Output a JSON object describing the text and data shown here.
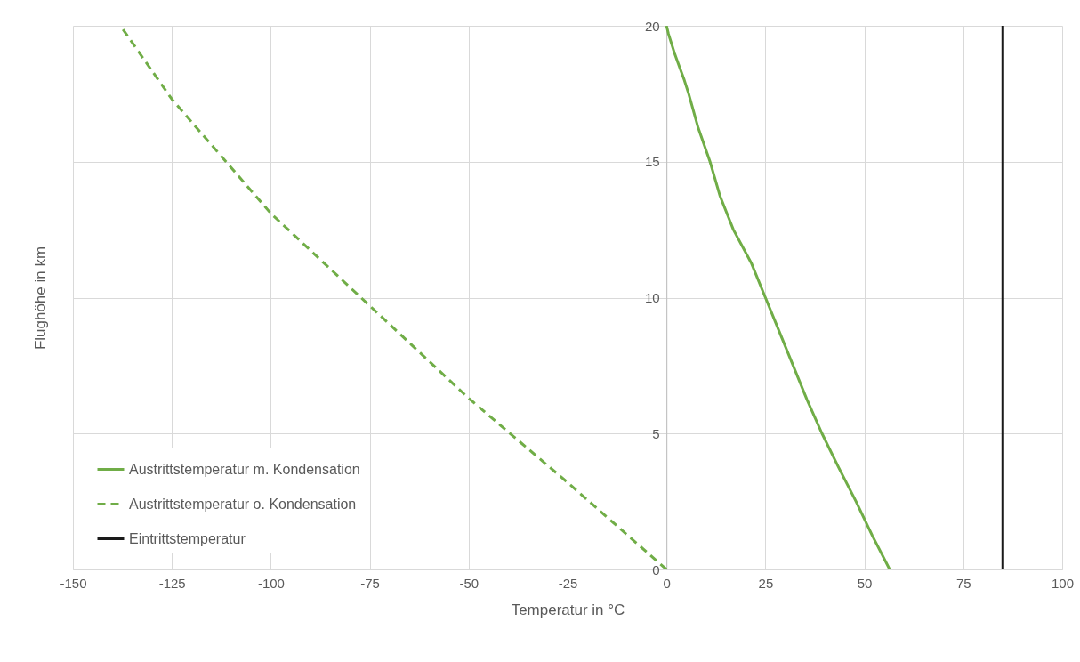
{
  "chart_data": {
    "type": "line",
    "xlabel": "Temperatur in °C",
    "ylabel": "Flughöhe in km",
    "xlim": [
      -150,
      100
    ],
    "xticks": [
      -150,
      -125,
      -100,
      -75,
      -50,
      -25,
      0,
      25,
      50,
      75,
      100
    ],
    "ylim": [
      0,
      20
    ],
    "yticks": [
      0,
      5,
      10,
      15,
      20
    ],
    "grid": true,
    "legend": "bottom left",
    "series": [
      {
        "name": "Austrittstemperatur m. Kondensation",
        "color": "#70ad47",
        "line_style": "solid",
        "x": [
          56.4,
          52,
          47.9,
          43.5,
          39.3,
          35.5,
          32,
          28.5,
          25,
          21.5,
          16.9,
          13.5,
          11,
          8,
          5.6,
          4.5,
          2,
          0.5,
          0
        ],
        "values": [
          0,
          1.25,
          2.5,
          3.75,
          5,
          6.25,
          7.5,
          8.75,
          10,
          11.25,
          12.5,
          13.75,
          15,
          16.25,
          17.5,
          18,
          19,
          19.7,
          20
        ]
      },
      {
        "name": "Austrittstemperatur o. Kondensation",
        "color": "#70ad47",
        "line_style": "dashed",
        "x": [
          0,
          -25,
          -50,
          -75,
          -100,
          -125,
          -138
        ],
        "values": [
          0,
          3.2,
          6.3,
          9.7,
          13.1,
          17.3,
          20
        ]
      },
      {
        "name": "Eintrittstemperatur",
        "color": "#1a1a1a",
        "line_style": "solid",
        "x": [
          85,
          85
        ],
        "values": [
          0,
          20
        ]
      }
    ]
  }
}
